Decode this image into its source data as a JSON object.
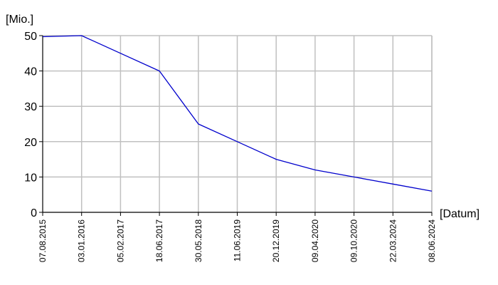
{
  "chart_data": {
    "type": "line",
    "x_unit_label": "[Datum]",
    "y_unit_label": "[Mio.]",
    "ylim": [
      0,
      50
    ],
    "y_ticks": [
      0,
      10,
      20,
      30,
      40,
      50
    ],
    "grid": true,
    "legend": "none",
    "line_color": "#0000cc",
    "grid_color": "#c0c0c0",
    "x_ticks": [
      "07.08.2015",
      "03.01.2016",
      "05.02.2017",
      "18.06.2017",
      "30.05.2018",
      "11.06.2019",
      "20.12.2019",
      "09.04.2020",
      "09.10.2020",
      "22.03.2024",
      "08.06.2024"
    ],
    "series": [
      {
        "x": [
          "07.08.2015",
          "03.01.2016",
          "05.02.2017",
          "18.06.2017",
          "30.05.2018",
          "11.06.2019",
          "20.12.2019",
          "09.04.2020",
          "09.10.2020",
          "22.03.2024",
          "08.06.2024"
        ],
        "values": [
          49.7,
          50,
          45,
          40,
          25,
          20,
          15,
          12,
          10,
          8,
          6
        ]
      }
    ]
  }
}
